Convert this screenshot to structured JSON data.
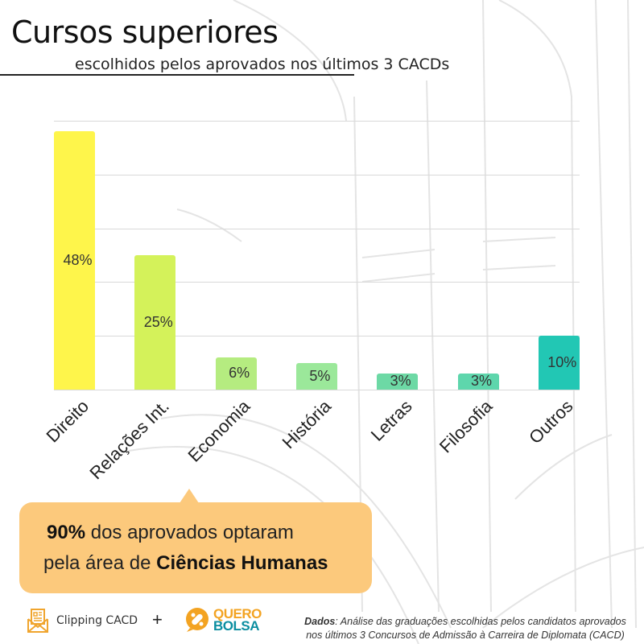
{
  "header": {
    "title": "Cursos superiores",
    "subtitle": "escolhidos pelos aprovados nos últimos 3 CACDs"
  },
  "chart_data": {
    "type": "bar",
    "title": "Cursos superiores",
    "subtitle": "escolhidos pelos aprovados nos últimos 3 CACDs",
    "categories": [
      "Direito",
      "Relações Int.",
      "Economia",
      "História",
      "Letras",
      "Filosofia",
      "Outros"
    ],
    "values": [
      48,
      25,
      6,
      5,
      3,
      3,
      10
    ],
    "value_labels": [
      "48%",
      "25%",
      "6%",
      "5%",
      "3%",
      "3%",
      "10%"
    ],
    "colors": [
      "#FEF54B",
      "#D4F25A",
      "#B5EC80",
      "#9BE89A",
      "#6DD9A5",
      "#5ED6AC",
      "#22C7B4"
    ],
    "xlabel": "",
    "ylabel": "",
    "ylim": [
      0,
      50
    ],
    "grid": true,
    "gridlines": 5,
    "legend": null,
    "unit": "%"
  },
  "callout": {
    "line1_bold": "90%",
    "line1_rest": " dos aprovados optaram",
    "line2_start": "pela área de ",
    "line2_bold": "Ciências Humanas",
    "color": "#FCC97C"
  },
  "footer": {
    "logo1_name": "Clipping CACD",
    "logo1_icon": "newspaper-envelope-icon",
    "plus": "+",
    "logo2_line1": "QUERO",
    "logo2_line2": "BOLSA",
    "source_label": "Dados",
    "source_line1": ": Análise das graduações escolhidas pelos candidatos aprovados",
    "source_line2": "nos últimos 3 Concursos de Admissão à Carreira de Diplomata (CACD)"
  }
}
